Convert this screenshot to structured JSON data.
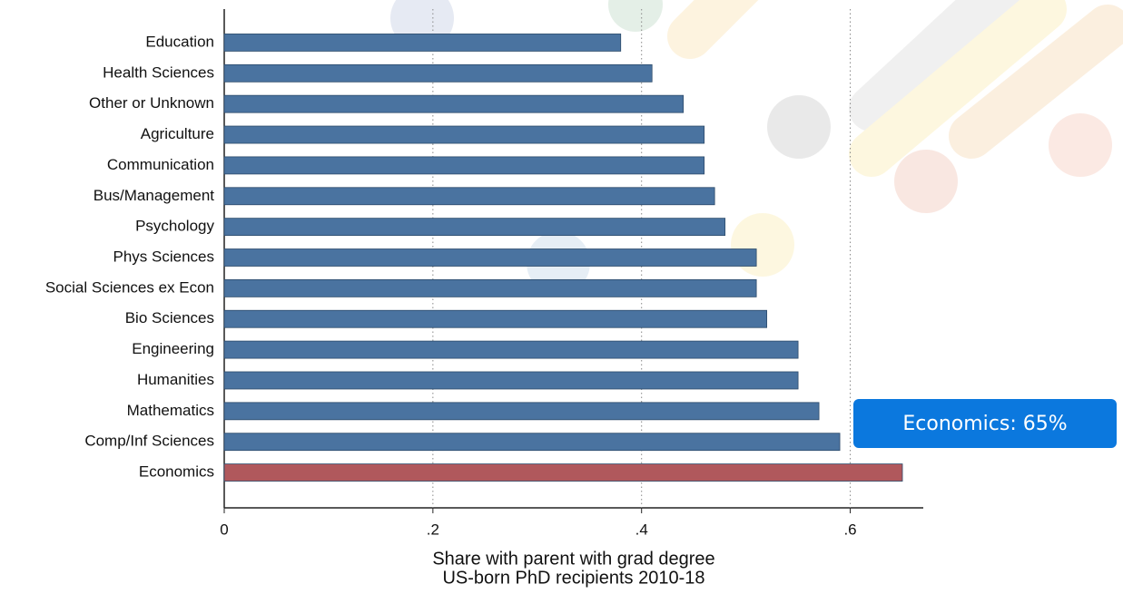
{
  "chart_data": {
    "type": "bar",
    "orientation": "horizontal",
    "categories": [
      "Education",
      "Health Sciences",
      "Other or Unknown",
      "Agriculture",
      "Communication",
      "Bus/Management",
      "Psychology",
      "Phys Sciences",
      "Social Sciences ex Econ",
      "Bio Sciences",
      "Engineering",
      "Humanities",
      "Mathematics",
      "Comp/Inf Sciences",
      "Economics"
    ],
    "values": [
      0.38,
      0.41,
      0.44,
      0.46,
      0.46,
      0.47,
      0.48,
      0.51,
      0.51,
      0.52,
      0.55,
      0.55,
      0.57,
      0.59,
      0.65
    ],
    "colors": [
      "#4a73a0",
      "#4a73a0",
      "#4a73a0",
      "#4a73a0",
      "#4a73a0",
      "#4a73a0",
      "#4a73a0",
      "#4a73a0",
      "#4a73a0",
      "#4a73a0",
      "#4a73a0",
      "#4a73a0",
      "#4a73a0",
      "#4a73a0",
      "#b0585c"
    ],
    "xlim": [
      0,
      0.67
    ],
    "xticks": [
      0,
      {
        "value": 0.2,
        "label": ".2"
      },
      {
        "value": 0.4,
        "label": ".4"
      },
      {
        "value": 0.6,
        "label": ".6"
      }
    ],
    "grid": true,
    "x_label": [
      "Share with parent with grad degree",
      "US-born PhD recipients 2010-18"
    ],
    "annotation": "Economics: 65%"
  }
}
